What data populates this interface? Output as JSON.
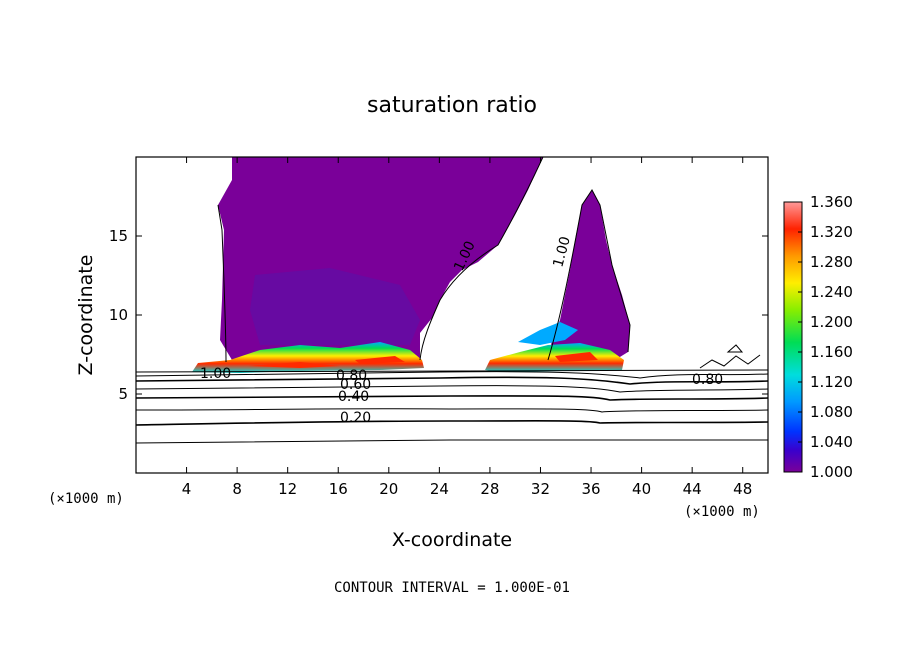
{
  "chart_data": {
    "type": "heatmap",
    "title": "saturation ratio",
    "xlabel": "X-coordinate",
    "ylabel": "Z-coordinate",
    "x_unit": "(×1000 m)",
    "z_unit": "(×1000 m)",
    "xlim": [
      0,
      50
    ],
    "ylim": [
      0,
      20
    ],
    "x_ticks": [
      4,
      8,
      12,
      16,
      20,
      24,
      28,
      32,
      36,
      40,
      44,
      48
    ],
    "y_ticks": [
      5,
      10,
      15
    ],
    "colorbar": {
      "min": 1.0,
      "max": 1.36,
      "ticks": [
        "1.000",
        "1.040",
        "1.080",
        "1.120",
        "1.160",
        "1.200",
        "1.240",
        "1.280",
        "1.320",
        "1.360"
      ],
      "colors": [
        "#7a0099",
        "#3300cc",
        "#0033ff",
        "#00a0ff",
        "#00e0e0",
        "#00dd55",
        "#77ee00",
        "#ffee00",
        "#ff9900",
        "#ff2200",
        "#ff8888"
      ]
    },
    "contour_lines": {
      "labels": [
        "0.20",
        "0.40",
        "0.60",
        "0.80",
        "1.00"
      ],
      "interval_note": "CONTOUR INTERVAL = 1.000E-01"
    },
    "regions": [
      {
        "name": "left supersaturated plume",
        "x_range": [
          5,
          22.5
        ],
        "z_range": [
          6.5,
          20
        ],
        "max_ratio": 1.36
      },
      {
        "name": "right supersaturated plume",
        "x_range": [
          27.5,
          39
        ],
        "z_range": [
          6.5,
          17.8
        ],
        "max_ratio": 1.33
      }
    ]
  }
}
